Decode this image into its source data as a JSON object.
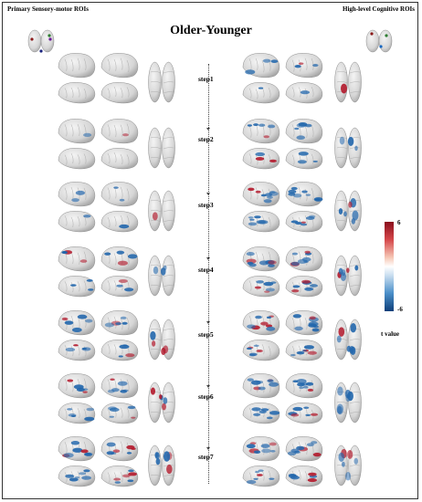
{
  "labels": {
    "left": "Primary Sensory-motor ROIs",
    "right": "High-level Cognitive ROIs",
    "title": "Older-Younger"
  },
  "steps": [
    "step1",
    "step2",
    "step3",
    "step4",
    "step5",
    "step6",
    "step7"
  ],
  "colorbar": {
    "max": "6",
    "min": "-6",
    "label": "t value",
    "colors": {
      "positive": "#b2182b",
      "neutral": "#ffffff",
      "negative": "#2166ac"
    }
  }
}
